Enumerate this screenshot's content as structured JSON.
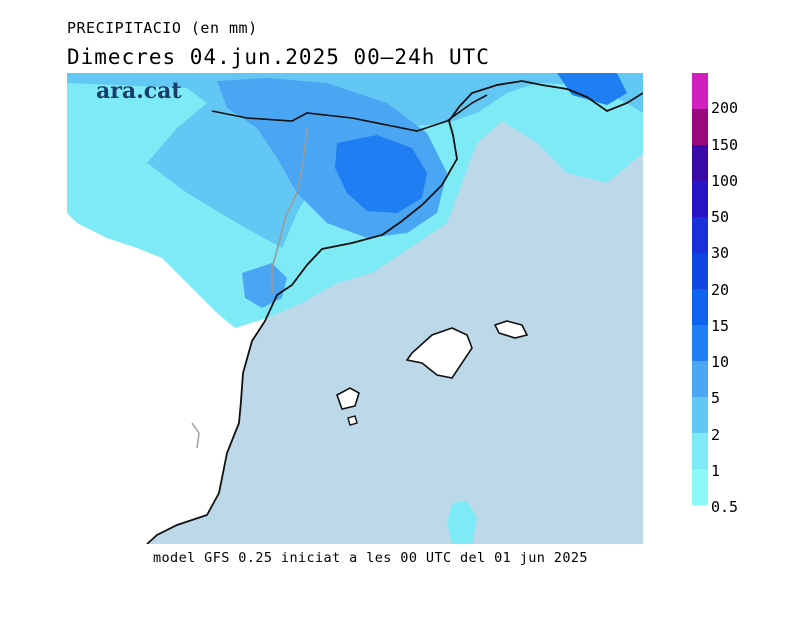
{
  "header": {
    "title": "PRECIPITACIO (en mm)",
    "subtitle": "Dimecres  04.jun.2025 00–24h UTC"
  },
  "map": {
    "logo": "ara.cat",
    "colors": {
      "sea": "#bcd8e9",
      "land": "#ffffff",
      "coast": "#111111",
      "border": "#9a9a9a"
    }
  },
  "legend": {
    "levels": [
      "200",
      "150",
      "100",
      "50",
      "30",
      "20",
      "15",
      "10",
      "5",
      "2",
      "1",
      "0.5"
    ],
    "colors": [
      "#d21fbf",
      "#9a0a7c",
      "#3a0aa9",
      "#2a14c8",
      "#1a30d8",
      "#0f45e0",
      "#0f62ed",
      "#1f7ef2",
      "#4aa6f3",
      "#63c7f4",
      "#7eeaf5",
      "#8bfaf6"
    ]
  },
  "footer": {
    "text": "model GFS 0.25 iniciat a les 00 UTC del 01 jun 2025"
  }
}
